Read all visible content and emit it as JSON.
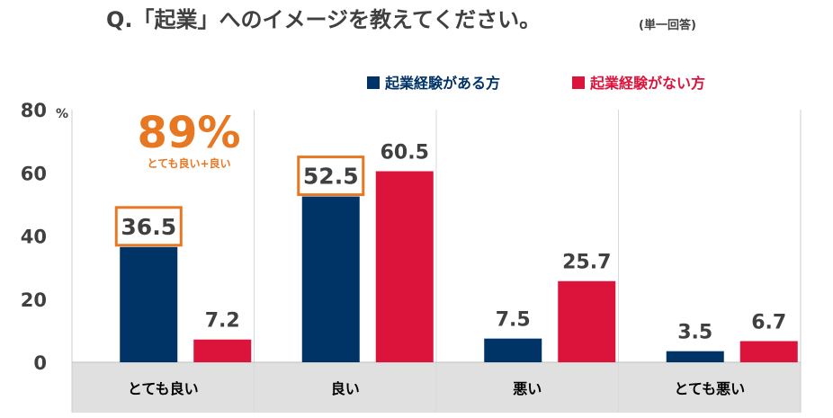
{
  "colors": {
    "experienced": "#003366",
    "not_experienced": "#dc143c",
    "highlight": "#e87722",
    "category_band": "#e0e0e0",
    "text": "#404040"
  },
  "chart_data": {
    "type": "bar",
    "title": "Q.「起業」へのイメージを教えてください。",
    "subtitle": "(単一回答)",
    "ylabel": "",
    "y_unit": "%",
    "ylim": [
      0,
      80
    ],
    "yticks": [
      0,
      20,
      40,
      60,
      80
    ],
    "grid": "vertical-separators",
    "legend_position": "top-right",
    "categories": [
      "とても良い",
      "良い",
      "悪い",
      "とても悪い"
    ],
    "series": [
      {
        "name": "起業経験がある方",
        "values": [
          36.5,
          52.5,
          7.5,
          3.5
        ]
      },
      {
        "name": "起業経験がない方",
        "values": [
          7.2,
          60.5,
          25.7,
          6.7
        ]
      }
    ],
    "value_labels": [
      [
        "36.5",
        "52.5",
        "7.5",
        "3.5"
      ],
      [
        "7.2",
        "60.5",
        "25.7",
        "6.7"
      ]
    ],
    "highlighted_values": [
      [
        0,
        0
      ],
      [
        0,
        1
      ]
    ],
    "annotation": {
      "value": "89%",
      "label": "とても良い+良い"
    }
  }
}
